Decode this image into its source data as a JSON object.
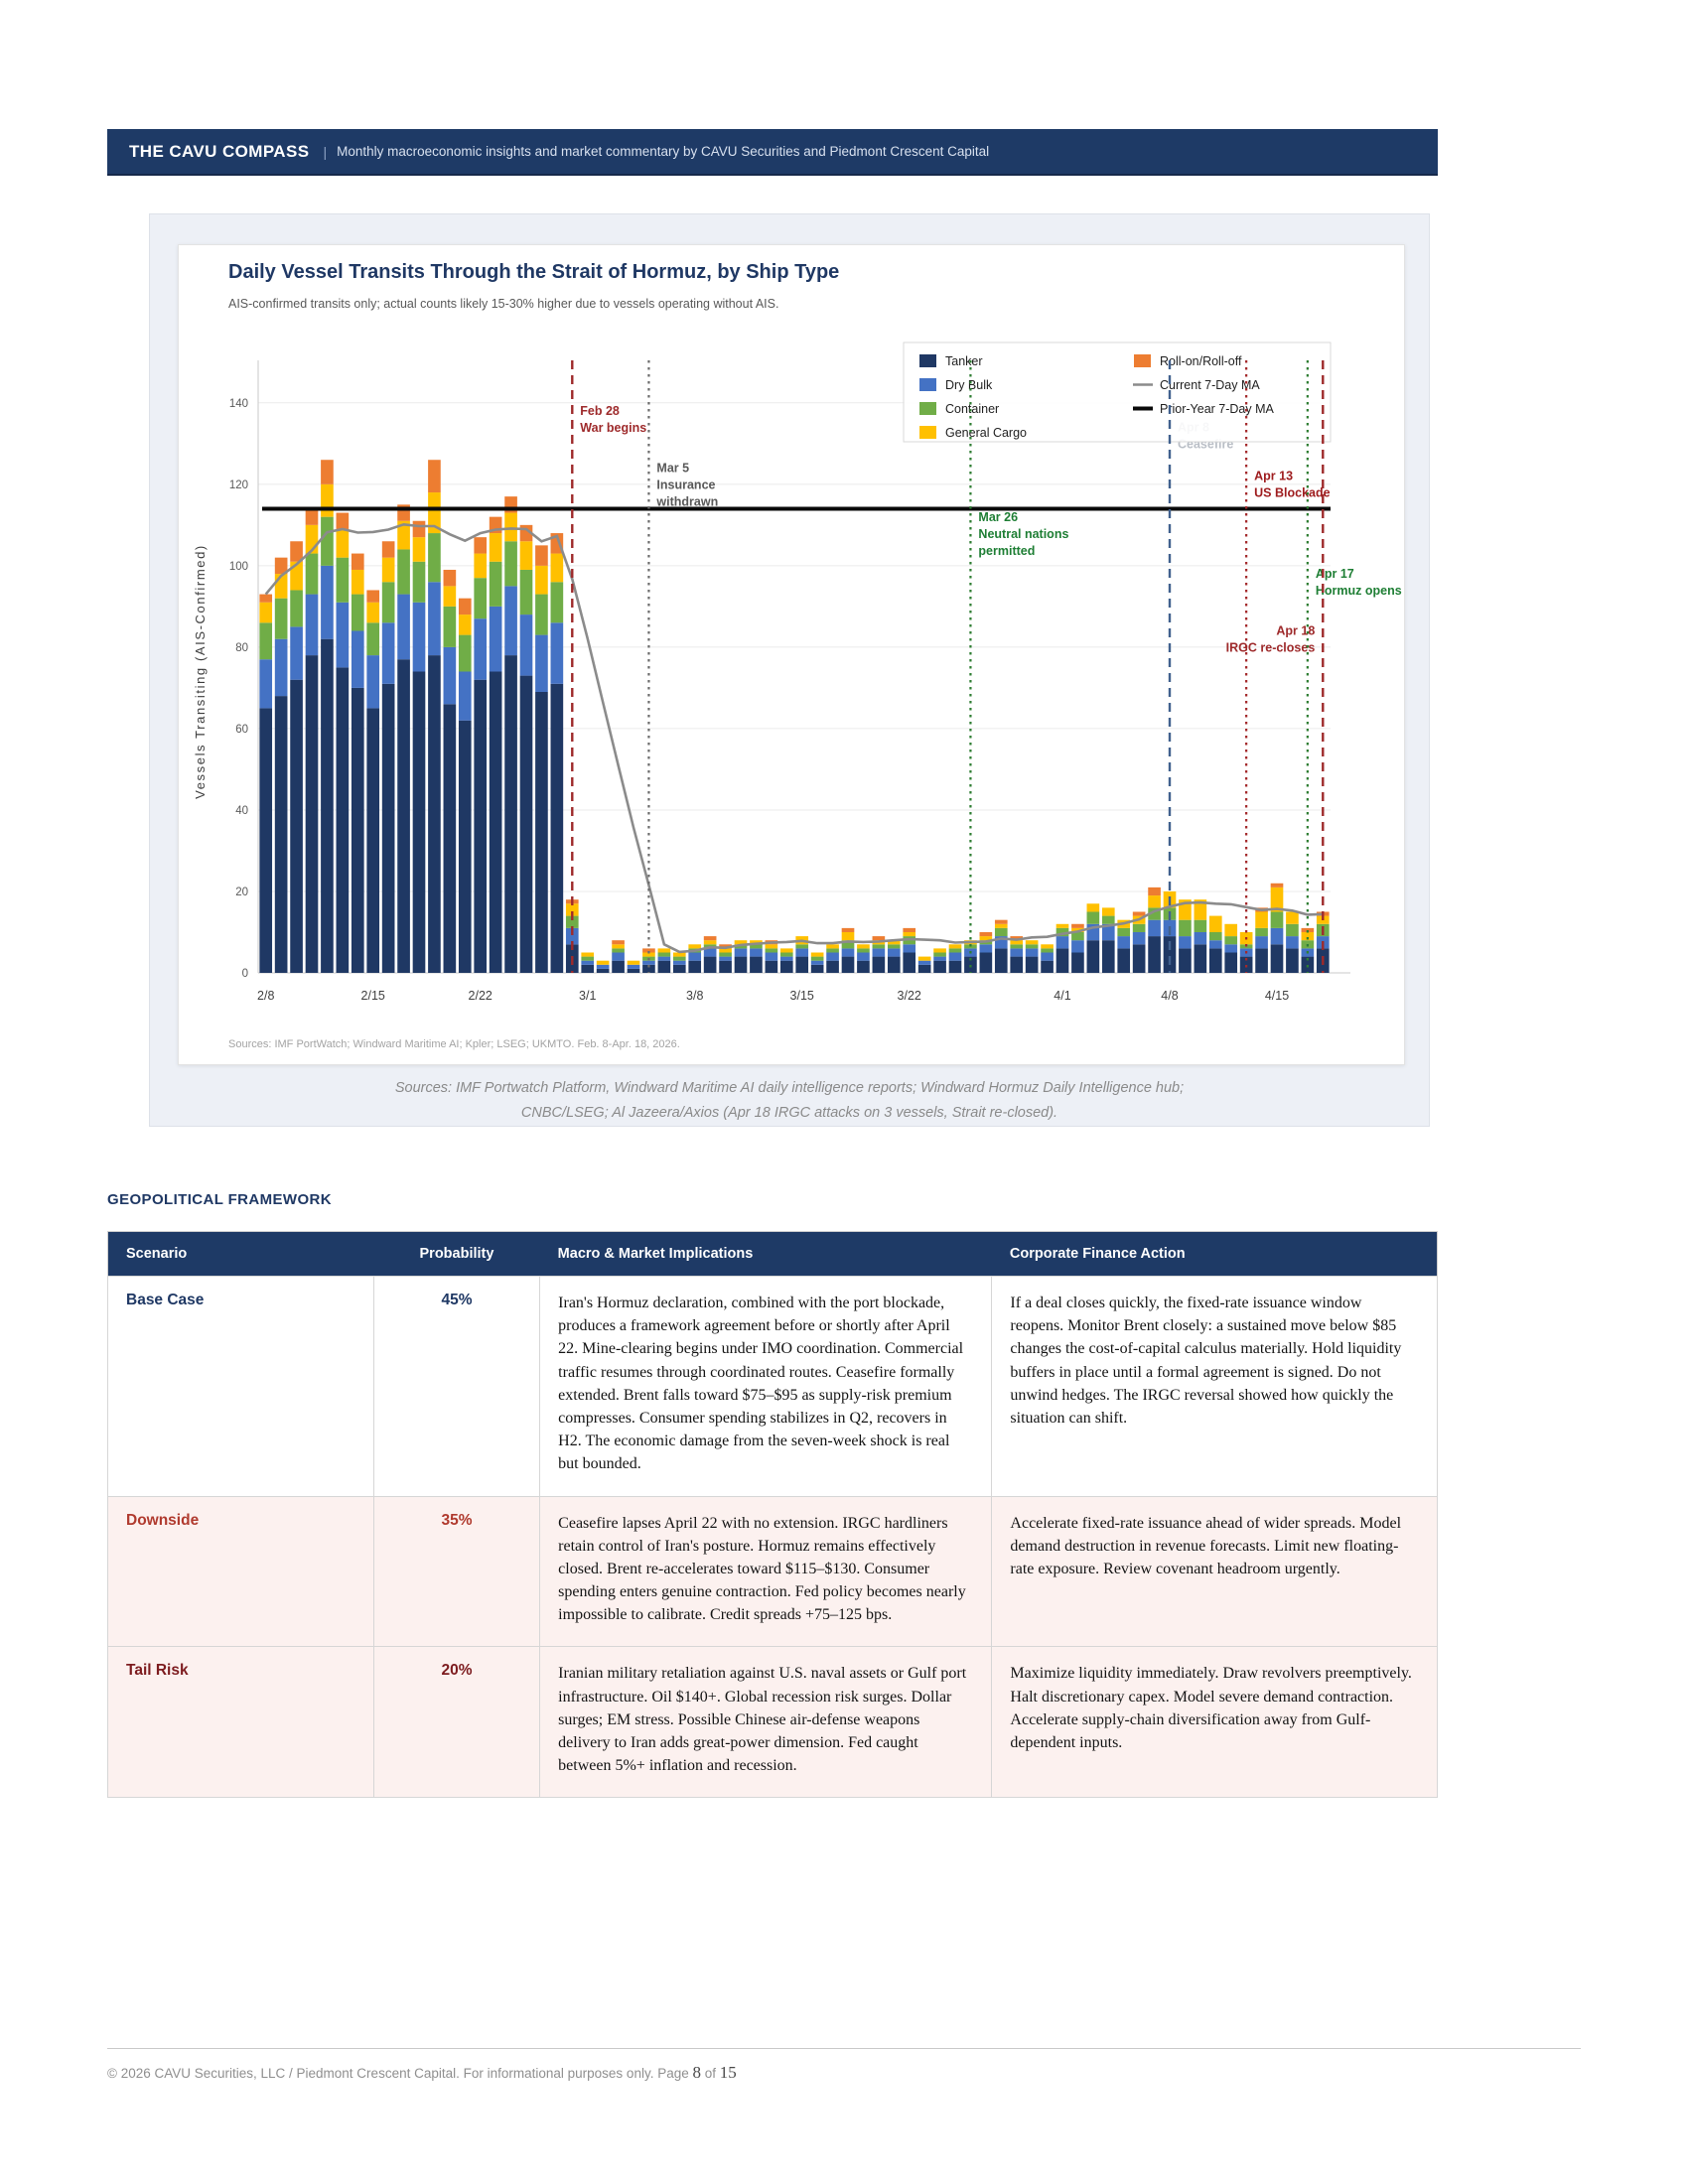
{
  "header": {
    "brand": "THE CAVU COMPASS",
    "separator": "|",
    "tagline": "Monthly macroeconomic insights and market commentary by CAVU Securities and Piedmont Crescent Capital"
  },
  "chart_data": {
    "type": "bar",
    "stacked": true,
    "title": "Daily Vessel Transits Through the Strait of Hormuz, by Ship Type",
    "subtitle": "AIS-confirmed transits only; actual counts likely 15-30% higher due to vessels operating without AIS.",
    "source_note": "Sources: IMF PortWatch; Windward Maritime AI; Kpler; LSEG; UKMTO. Feb. 8-Apr. 18, 2026.",
    "ylabel": "Vessels Transiting (AIS-Confirmed)",
    "xlabel": "",
    "ylim": [
      0,
      148
    ],
    "yticks": [
      0,
      20,
      40,
      60,
      80,
      100,
      120,
      140
    ],
    "xticks": [
      "2/8",
      "2/15",
      "2/22",
      "3/1",
      "3/8",
      "3/15",
      "3/22",
      "4/1",
      "4/8",
      "4/15"
    ],
    "grid": true,
    "legend_position": "top-right",
    "ma_window": 7,
    "prior_year_7day_ma": 114,
    "x": [
      "2/8",
      "2/9",
      "2/10",
      "2/11",
      "2/12",
      "2/13",
      "2/14",
      "2/15",
      "2/16",
      "2/17",
      "2/18",
      "2/19",
      "2/20",
      "2/21",
      "2/22",
      "2/23",
      "2/24",
      "2/25",
      "2/26",
      "2/27",
      "2/28",
      "3/1",
      "3/2",
      "3/3",
      "3/4",
      "3/5",
      "3/6",
      "3/7",
      "3/8",
      "3/9",
      "3/10",
      "3/11",
      "3/12",
      "3/13",
      "3/14",
      "3/15",
      "3/16",
      "3/17",
      "3/18",
      "3/19",
      "3/20",
      "3/21",
      "3/22",
      "3/23",
      "3/24",
      "3/25",
      "3/26",
      "3/27",
      "3/28",
      "3/29",
      "3/30",
      "3/31",
      "4/1",
      "4/2",
      "4/3",
      "4/4",
      "4/5",
      "4/6",
      "4/7",
      "4/8",
      "4/9",
      "4/10",
      "4/11",
      "4/12",
      "4/13",
      "4/14",
      "4/15",
      "4/16",
      "4/17",
      "4/18"
    ],
    "series": [
      {
        "key": "tanker",
        "name": "Tanker",
        "color": "#1f3864",
        "values": [
          65,
          68,
          72,
          78,
          82,
          75,
          70,
          65,
          71,
          77,
          74,
          78,
          66,
          62,
          72,
          74,
          78,
          73,
          69,
          71,
          7,
          2,
          1,
          3,
          1,
          2,
          3,
          2,
          3,
          4,
          3,
          4,
          4,
          3,
          3,
          4,
          2,
          3,
          4,
          3,
          4,
          4,
          5,
          2,
          3,
          3,
          4,
          5,
          6,
          4,
          4,
          3,
          6,
          5,
          8,
          8,
          6,
          7,
          9,
          9,
          6,
          7,
          6,
          5,
          4,
          6,
          7,
          6,
          4,
          6
        ]
      },
      {
        "key": "drybulk",
        "name": "Dry Bulk",
        "color": "#4472c4",
        "values": [
          12,
          14,
          13,
          15,
          18,
          16,
          14,
          13,
          15,
          16,
          17,
          18,
          14,
          12,
          15,
          16,
          17,
          15,
          14,
          15,
          4,
          1,
          1,
          2,
          1,
          1,
          1,
          1,
          2,
          2,
          1,
          2,
          2,
          2,
          1,
          2,
          1,
          2,
          2,
          2,
          2,
          2,
          2,
          1,
          1,
          2,
          2,
          2,
          3,
          2,
          2,
          2,
          3,
          3,
          4,
          4,
          3,
          3,
          4,
          4,
          3,
          3,
          2,
          2,
          2,
          3,
          4,
          3,
          2,
          3
        ]
      },
      {
        "key": "container",
        "name": "Container",
        "color": "#70ad47",
        "values": [
          9,
          10,
          9,
          10,
          12,
          11,
          9,
          8,
          10,
          11,
          10,
          12,
          10,
          9,
          10,
          11,
          11,
          11,
          10,
          10,
          3,
          1,
          0,
          1,
          0,
          1,
          1,
          1,
          1,
          1,
          1,
          1,
          1,
          1,
          1,
          1,
          1,
          1,
          2,
          1,
          1,
          1,
          2,
          0,
          1,
          1,
          1,
          1,
          2,
          1,
          1,
          1,
          2,
          2,
          3,
          2,
          2,
          2,
          3,
          3,
          4,
          3,
          2,
          2,
          1,
          2,
          4,
          3,
          2,
          3
        ]
      },
      {
        "key": "gencargo",
        "name": "General Cargo",
        "color": "#ffc000",
        "values": [
          5,
          6,
          7,
          7,
          8,
          7,
          6,
          5,
          6,
          7,
          6,
          10,
          5,
          5,
          6,
          7,
          7,
          7,
          7,
          7,
          3,
          1,
          1,
          1,
          1,
          1,
          1,
          1,
          1,
          1,
          1,
          1,
          1,
          1,
          1,
          2,
          1,
          1,
          2,
          1,
          1,
          1,
          1,
          1,
          1,
          1,
          1,
          1,
          1,
          1,
          1,
          1,
          1,
          1,
          2,
          2,
          2,
          2,
          3,
          4,
          5,
          5,
          4,
          3,
          3,
          4,
          6,
          3,
          2,
          2
        ]
      },
      {
        "key": "roro",
        "name": "Roll-on/Roll-off",
        "color": "#ed7d31",
        "values": [
          2,
          4,
          5,
          4,
          6,
          4,
          4,
          3,
          4,
          4,
          4,
          8,
          4,
          4,
          4,
          4,
          4,
          4,
          5,
          5,
          1,
          0,
          0,
          1,
          0,
          1,
          0,
          0,
          0,
          1,
          1,
          0,
          0,
          1,
          0,
          0,
          0,
          0,
          1,
          0,
          1,
          0,
          1,
          0,
          0,
          0,
          0,
          1,
          1,
          1,
          0,
          0,
          0,
          1,
          0,
          0,
          0,
          1,
          2,
          0,
          0,
          0,
          0,
          0,
          0,
          1,
          1,
          0,
          1,
          1
        ]
      }
    ],
    "legend": [
      {
        "key": "tanker",
        "label": "Tanker",
        "type": "swatch",
        "color": "#1f3864"
      },
      {
        "key": "drybulk",
        "label": "Dry Bulk",
        "type": "swatch",
        "color": "#4472c4"
      },
      {
        "key": "container",
        "label": "Container",
        "type": "swatch",
        "color": "#70ad47"
      },
      {
        "key": "gencargo",
        "label": "General Cargo",
        "type": "swatch",
        "color": "#ffc000"
      },
      {
        "key": "roro",
        "label": "Roll-on/Roll-off",
        "type": "swatch",
        "color": "#ed7d31"
      },
      {
        "key": "current-ma",
        "label": "Current 7-Day MA",
        "type": "line",
        "color": "#8b8b8b",
        "weight": 2.6
      },
      {
        "key": "prior-ma",
        "label": "Prior-Year 7-Day MA",
        "type": "line",
        "color": "#0a0a0a",
        "weight": 4
      }
    ],
    "events": [
      {
        "date": "2/28",
        "lines": [
          "Feb 28",
          "War begins"
        ],
        "color": "#9e2a2b",
        "style": "dashed",
        "side": "right",
        "label_color": "#9e2a2b",
        "label_top": 137
      },
      {
        "date": "3/5",
        "lines": [
          "Mar 5",
          "Insurance",
          "withdrawn"
        ],
        "color": "#6b6b6b",
        "style": "dotted",
        "side": "right",
        "label_color": "#595959",
        "label_top": 123
      },
      {
        "date": "3/26",
        "lines": [
          "Mar 26",
          "Neutral nations",
          "permitted"
        ],
        "color": "#2e7d32",
        "style": "dotted",
        "side": "right",
        "label_color": "#1e7e34",
        "label_top": 111
      },
      {
        "date": "4/8",
        "lines": [
          "Apr 8",
          "Ceasefire"
        ],
        "color": "#41618e",
        "style": "dashed",
        "side": "right",
        "label_color": "#b9bec6",
        "label_top": 133
      },
      {
        "date": "4/13",
        "lines": [
          "Apr 13",
          "US Blockade"
        ],
        "color": "#a3282a",
        "style": "dotted",
        "side": "right",
        "label_color": "#9e1c1e",
        "label_top": 121
      },
      {
        "date": "4/17",
        "lines": [
          "Apr 17",
          "Hormuz opens"
        ],
        "color": "#2e7d32",
        "style": "dotted",
        "side": "right",
        "label_color": "#1e7e34",
        "label_top": 97
      },
      {
        "date": "4/18",
        "lines": [
          "Apr 18",
          "IRGC re-closes"
        ],
        "color": "#9e2a2b",
        "style": "dashed",
        "side": "left",
        "label_color": "#9e2a2b",
        "label_top": 83
      }
    ]
  },
  "caption": {
    "line1": "Sources: IMF Portwatch Platform, Windward Maritime AI daily intelligence reports; Windward Hormuz Daily Intelligence hub;",
    "line2": "CNBC/LSEG; Al Jazeera/Axios (Apr 18 IRGC attacks on 3 vessels, Strait re-closed)."
  },
  "framework": {
    "heading": "GEOPOLITICAL FRAMEWORK",
    "columns": [
      "Scenario",
      "Probability",
      "Macro & Market Implications",
      "Corporate Finance Action"
    ],
    "rows": [
      {
        "scenario": "Base Case",
        "probability": "45%",
        "accent": "#1f3864",
        "bg": "#ffffff",
        "implications": "Iran's Hormuz declaration, combined with the port blockade, produces a framework agreement before or shortly after April 22. Mine-clearing begins under IMO coordination. Commercial traffic resumes through coordinated routes. Ceasefire formally extended. Brent falls toward $75–$95 as supply-risk premium compresses. Consumer spending stabilizes in Q2, recovers in H2. The economic damage from the seven-week shock is real but bounded.",
        "action": "If a deal closes quickly, the fixed-rate issuance window reopens. Monitor Brent closely: a sustained move below $85 changes the cost-of-capital calculus materially. Hold liquidity buffers in place until a formal agreement is signed. Do not unwind hedges. The IRGC reversal showed how quickly the situation can shift."
      },
      {
        "scenario": "Downside",
        "probability": "35%",
        "accent": "#b03a2e",
        "bg": "#fcf1ef",
        "implications": "Ceasefire lapses April 22 with no extension. IRGC hardliners retain control of Iran's posture. Hormuz remains effectively closed. Brent re-accelerates toward $115–$130. Consumer spending enters genuine contraction. Fed policy becomes nearly impossible to calibrate. Credit spreads +75–125 bps.",
        "action": "Accelerate fixed-rate issuance ahead of wider spreads. Model demand destruction in revenue forecasts. Limit new floating-rate exposure. Review covenant headroom urgently."
      },
      {
        "scenario": "Tail Risk",
        "probability": "20%",
        "accent": "#7d1c1f",
        "bg": "#fcf1ef",
        "implications": "Iranian military retaliation against U.S. naval assets or Gulf port infrastructure. Oil $140+. Global recession risk surges. Dollar surges; EM stress. Possible Chinese air-defense weapons delivery to Iran adds great-power dimension. Fed caught between 5%+ inflation and recession.",
        "action": "Maximize liquidity immediately. Draw revolvers preemptively. Halt discretionary capex. Model severe demand contraction. Accelerate supply-chain diversification away from Gulf-dependent inputs."
      }
    ]
  },
  "footer": {
    "prefix": "© 2026 CAVU Securities, LLC / Piedmont Crescent Capital. For informational purposes only. Page ",
    "page": "8",
    "of": " of ",
    "total": "15"
  }
}
